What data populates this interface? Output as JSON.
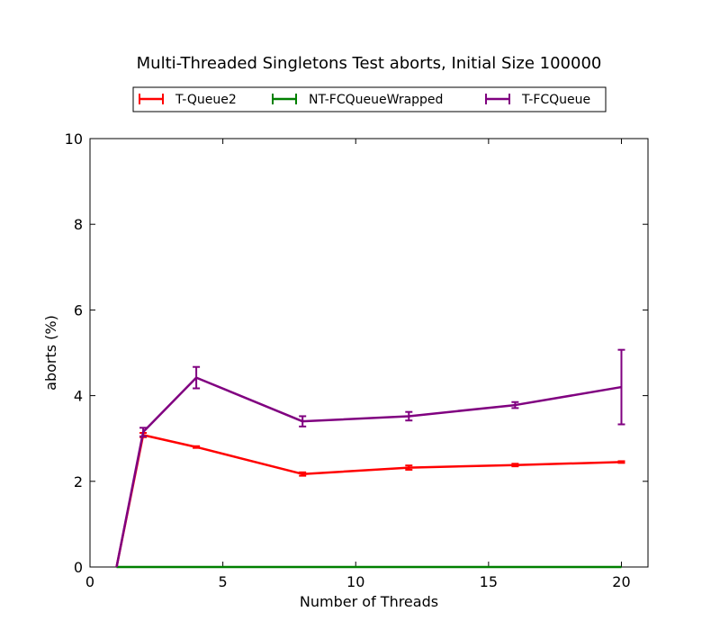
{
  "chart_data": {
    "type": "line",
    "title": "Multi-Threaded Singletons Test aborts, Initial Size 100000",
    "xlabel": "Number of Threads",
    "ylabel": "aborts (%)",
    "xlim": [
      0,
      21
    ],
    "ylim": [
      0,
      10
    ],
    "xticks": [
      0,
      5,
      10,
      15,
      20
    ],
    "yticks": [
      0,
      2,
      4,
      6,
      8,
      10
    ],
    "grid": false,
    "legend_position": "top-center",
    "x": [
      1,
      2,
      4,
      8,
      12,
      16,
      20
    ],
    "series": [
      {
        "name": "T-Queue2",
        "color": "#ff0000",
        "values": [
          0.0,
          3.08,
          2.8,
          2.17,
          2.32,
          2.38,
          2.45
        ],
        "error": [
          0.0,
          0.05,
          0.02,
          0.04,
          0.05,
          0.03,
          0.02
        ]
      },
      {
        "name": "NT-FCQueueWrapped",
        "color": "#008000",
        "values": [
          0,
          0,
          0,
          0,
          0,
          0,
          0
        ],
        "error": [
          0,
          0,
          0,
          0,
          0,
          0,
          0
        ]
      },
      {
        "name": "T-FCQueue",
        "color": "#800080",
        "values": [
          0.0,
          3.15,
          4.42,
          3.4,
          3.52,
          3.78,
          4.2
        ],
        "error": [
          0.0,
          0.1,
          0.25,
          0.12,
          0.1,
          0.07,
          0.87
        ]
      }
    ]
  }
}
